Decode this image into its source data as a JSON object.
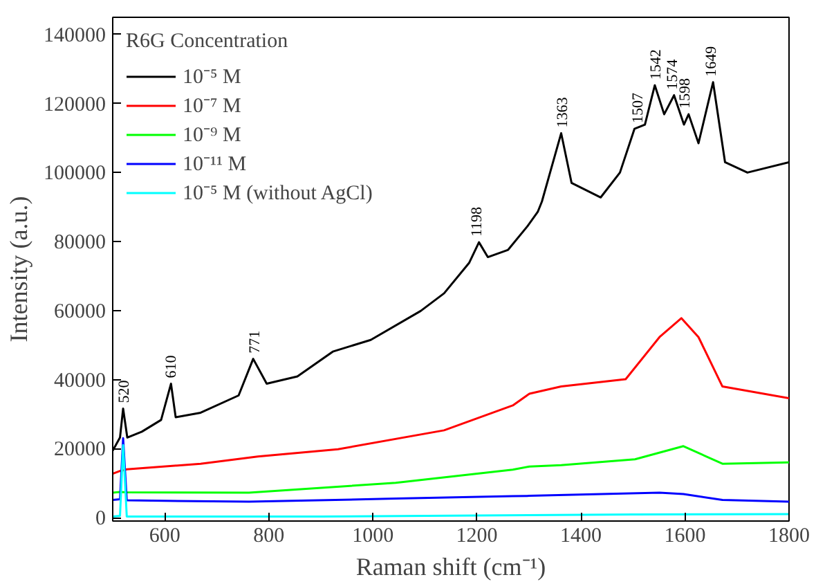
{
  "chart_data": {
    "type": "line",
    "xlabel": "Raman shift (cm⁻¹)",
    "ylabel": "Intensity (a.u.)",
    "legend_title": "R6G Concentration",
    "legend": "top left",
    "grid": false,
    "marker": "none",
    "line_style": "solid",
    "xlim": [
      500,
      1800
    ],
    "xticks": [
      600,
      800,
      1000,
      1200,
      1400,
      1600,
      1800
    ],
    "ylim": [
      -1000,
      145000
    ],
    "yticks": [
      0,
      20000,
      40000,
      60000,
      80000,
      100000,
      120000,
      140000
    ],
    "series": [
      {
        "name": "10⁻⁵ M",
        "color": "#000000",
        "x": [
          500,
          514,
          520,
          528,
          556,
          593,
          612,
          621,
          669,
          742,
          770,
          796,
          855,
          923,
          996,
          1092,
          1137,
          1185,
          1204,
          1221,
          1260,
          1297,
          1317,
          1325,
          1362,
          1382,
          1438,
          1475,
          1503,
          1523,
          1542,
          1560,
          1579,
          1598,
          1607,
          1626,
          1654,
          1677,
          1720,
          1800
        ],
        "values": [
          19400,
          23200,
          31600,
          23200,
          24900,
          28300,
          38800,
          29100,
          30400,
          35400,
          46000,
          38800,
          40900,
          48100,
          51500,
          59900,
          65000,
          73800,
          79800,
          75500,
          77600,
          84400,
          88600,
          91600,
          111400,
          97000,
          92800,
          100000,
          112700,
          113900,
          125300,
          116900,
          122400,
          113900,
          116900,
          108500,
          126200,
          103000,
          100000,
          103000
        ]
      },
      {
        "name": "10⁻⁷ M",
        "color": "#ff0000",
        "x": [
          500,
          514,
          527,
          669,
          779,
          933,
          1137,
          1269,
          1301,
          1362,
          1486,
          1551,
          1593,
          1626,
          1672,
          1800
        ],
        "values": [
          12700,
          13500,
          14000,
          15600,
          17700,
          19800,
          25300,
          32500,
          35900,
          38000,
          40100,
          52300,
          57800,
          52300,
          38000,
          34600
        ]
      },
      {
        "name": "10⁻⁹ M",
        "color": "#00ff00",
        "x": [
          500,
          514,
          527,
          762,
          1044,
          1269,
          1301,
          1362,
          1504,
          1597,
          1672,
          1800
        ],
        "values": [
          7200,
          7400,
          7300,
          7200,
          10100,
          13900,
          14800,
          15200,
          16900,
          20700,
          15600,
          16000
        ]
      },
      {
        "name": "10⁻¹¹ M",
        "color": "#0000ff",
        "x": [
          500,
          514,
          520,
          527,
          762,
          1044,
          1269,
          1301,
          1551,
          1597,
          1672,
          1800
        ],
        "values": [
          5100,
          5300,
          23000,
          5000,
          4600,
          5500,
          6200,
          6300,
          7200,
          6800,
          5100,
          4600
        ]
      },
      {
        "name": "10⁻⁵ M (without AgCl)",
        "color": "#00ffff",
        "x": [
          500,
          514,
          520,
          527,
          900,
          1200,
          1500,
          1800
        ],
        "values": [
          300,
          500,
          21000,
          300,
          300,
          600,
          900,
          1000
        ]
      }
    ],
    "annotations": [
      {
        "text": "520",
        "x": 520,
        "y": 31600
      },
      {
        "text": "610",
        "x": 610,
        "y": 38800
      },
      {
        "text": "771",
        "x": 771,
        "y": 46000
      },
      {
        "text": "1198",
        "x": 1198,
        "y": 79800
      },
      {
        "text": "1363",
        "x": 1363,
        "y": 111400
      },
      {
        "text": "1507",
        "x": 1507,
        "y": 112700
      },
      {
        "text": "1542",
        "x": 1542,
        "y": 125300
      },
      {
        "text": "1574",
        "x": 1574,
        "y": 122400
      },
      {
        "text": "1598",
        "x": 1598,
        "y": 116900
      },
      {
        "text": "1649",
        "x": 1649,
        "y": 126200
      }
    ]
  }
}
